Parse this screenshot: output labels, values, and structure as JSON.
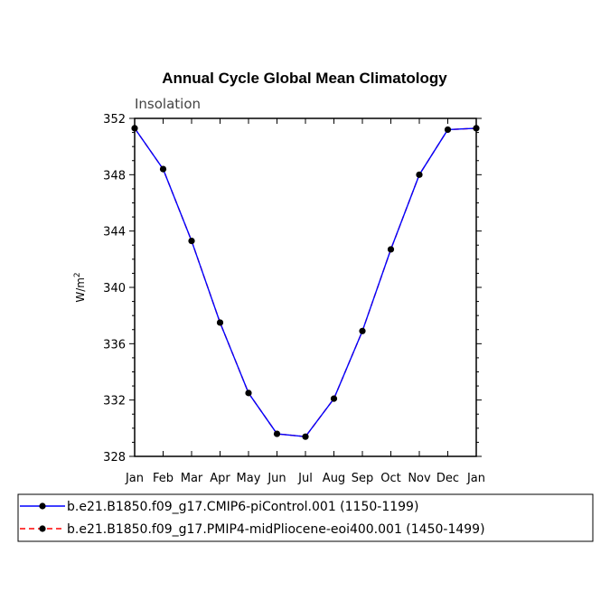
{
  "chart_data": {
    "type": "line",
    "title": "Annual Cycle Global Mean Climatology",
    "subtitle": "Insolation",
    "ylabel": "W/m",
    "ylabel_sup": "2",
    "ylim": [
      328,
      352
    ],
    "yticks": [
      "328",
      "332",
      "336",
      "340",
      "344",
      "348",
      "352"
    ],
    "categories": [
      "Jan",
      "Feb",
      "Mar",
      "Apr",
      "May",
      "Jun",
      "Jul",
      "Aug",
      "Sep",
      "Oct",
      "Nov",
      "Dec",
      "Jan"
    ],
    "series": [
      {
        "name": "b.e21.B1850.f09_g17.CMIP6-piControl.001 (1150-1199)",
        "color": "#0000ff",
        "dash": "solid",
        "values": [
          351.3,
          348.4,
          343.3,
          337.5,
          332.5,
          329.6,
          329.4,
          332.1,
          336.9,
          342.7,
          348.0,
          351.2,
          351.3
        ]
      },
      {
        "name": "b.e21.B1850.f09_g17.PMIP4-midPliocene-eoi400.001 (1450-1499)",
        "color": "#ff0000",
        "dash": "dashed",
        "values": [
          351.3,
          348.4,
          343.3,
          337.5,
          332.5,
          329.6,
          329.4,
          332.1,
          336.9,
          342.7,
          348.0,
          351.2,
          351.3
        ]
      }
    ],
    "marker_color": "#000000"
  }
}
